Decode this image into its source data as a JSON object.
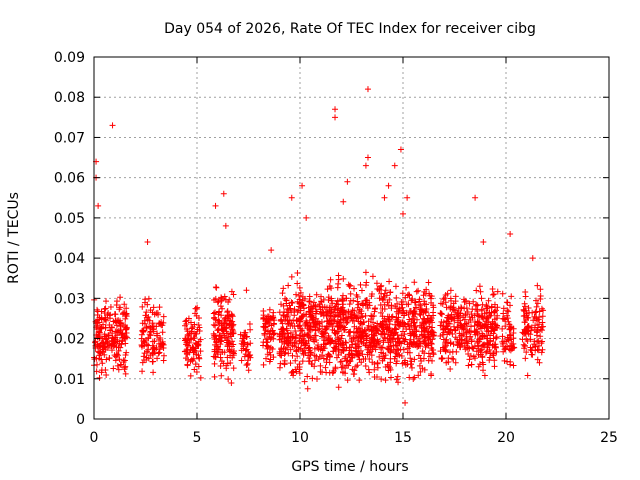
{
  "chart_data": {
    "type": "scatter",
    "title": "Day 054 of 2026, Rate Of TEC Index for receiver cibg",
    "xlabel": "GPS time / hours",
    "ylabel": "ROTI / TECUs",
    "xlim": [
      0,
      25
    ],
    "ylim": [
      0,
      0.09
    ],
    "xticks": [
      "0",
      "5",
      "10",
      "15",
      "20",
      "25"
    ],
    "yticks": [
      "0",
      "0.01",
      "0.02",
      "0.03",
      "0.04",
      "0.05",
      "0.06",
      "0.07",
      "0.08",
      "0.09"
    ],
    "grid": true,
    "marker": "+",
    "color": "#ff0000",
    "clusters": [
      {
        "x": [
          0.0,
          1.6
        ],
        "y": [
          0.008,
          0.033
        ],
        "n": 220
      },
      {
        "x": [
          2.3,
          3.4
        ],
        "y": [
          0.008,
          0.032
        ],
        "n": 110
      },
      {
        "x": [
          4.4,
          5.2
        ],
        "y": [
          0.008,
          0.03
        ],
        "n": 90
      },
      {
        "x": [
          5.8,
          6.8
        ],
        "y": [
          0.007,
          0.036
        ],
        "n": 160
      },
      {
        "x": [
          7.1,
          7.6
        ],
        "y": [
          0.01,
          0.025
        ],
        "n": 40
      },
      {
        "x": [
          8.2,
          8.8
        ],
        "y": [
          0.01,
          0.032
        ],
        "n": 70
      },
      {
        "x": [
          9.0,
          13.0
        ],
        "y": [
          0.006,
          0.038
        ],
        "n": 650
      },
      {
        "x": [
          13.0,
          16.5
        ],
        "y": [
          0.006,
          0.038
        ],
        "n": 520
      },
      {
        "x": [
          16.8,
          19.6
        ],
        "y": [
          0.009,
          0.035
        ],
        "n": 360
      },
      {
        "x": [
          19.8,
          20.4
        ],
        "y": [
          0.009,
          0.033
        ],
        "n": 60
      },
      {
        "x": [
          20.8,
          21.8
        ],
        "y": [
          0.009,
          0.036
        ],
        "n": 110
      }
    ],
    "outliers": [
      {
        "x": 0.1,
        "y": 0.064
      },
      {
        "x": 0.1,
        "y": 0.06
      },
      {
        "x": 0.2,
        "y": 0.053
      },
      {
        "x": 0.9,
        "y": 0.073
      },
      {
        "x": 2.6,
        "y": 0.044
      },
      {
        "x": 5.9,
        "y": 0.053
      },
      {
        "x": 6.3,
        "y": 0.056
      },
      {
        "x": 6.4,
        "y": 0.048
      },
      {
        "x": 7.4,
        "y": 0.032
      },
      {
        "x": 8.6,
        "y": 0.042
      },
      {
        "x": 9.6,
        "y": 0.055
      },
      {
        "x": 10.1,
        "y": 0.058
      },
      {
        "x": 10.3,
        "y": 0.05
      },
      {
        "x": 11.7,
        "y": 0.077
      },
      {
        "x": 11.7,
        "y": 0.075
      },
      {
        "x": 12.1,
        "y": 0.054
      },
      {
        "x": 12.3,
        "y": 0.059
      },
      {
        "x": 13.3,
        "y": 0.082
      },
      {
        "x": 13.3,
        "y": 0.065
      },
      {
        "x": 13.2,
        "y": 0.063
      },
      {
        "x": 14.3,
        "y": 0.058
      },
      {
        "x": 14.1,
        "y": 0.055
      },
      {
        "x": 14.9,
        "y": 0.067
      },
      {
        "x": 14.6,
        "y": 0.063
      },
      {
        "x": 15.2,
        "y": 0.055
      },
      {
        "x": 15.0,
        "y": 0.051
      },
      {
        "x": 18.5,
        "y": 0.055
      },
      {
        "x": 18.9,
        "y": 0.044
      },
      {
        "x": 20.2,
        "y": 0.046
      },
      {
        "x": 21.3,
        "y": 0.04
      },
      {
        "x": 15.1,
        "y": 0.004
      }
    ]
  }
}
